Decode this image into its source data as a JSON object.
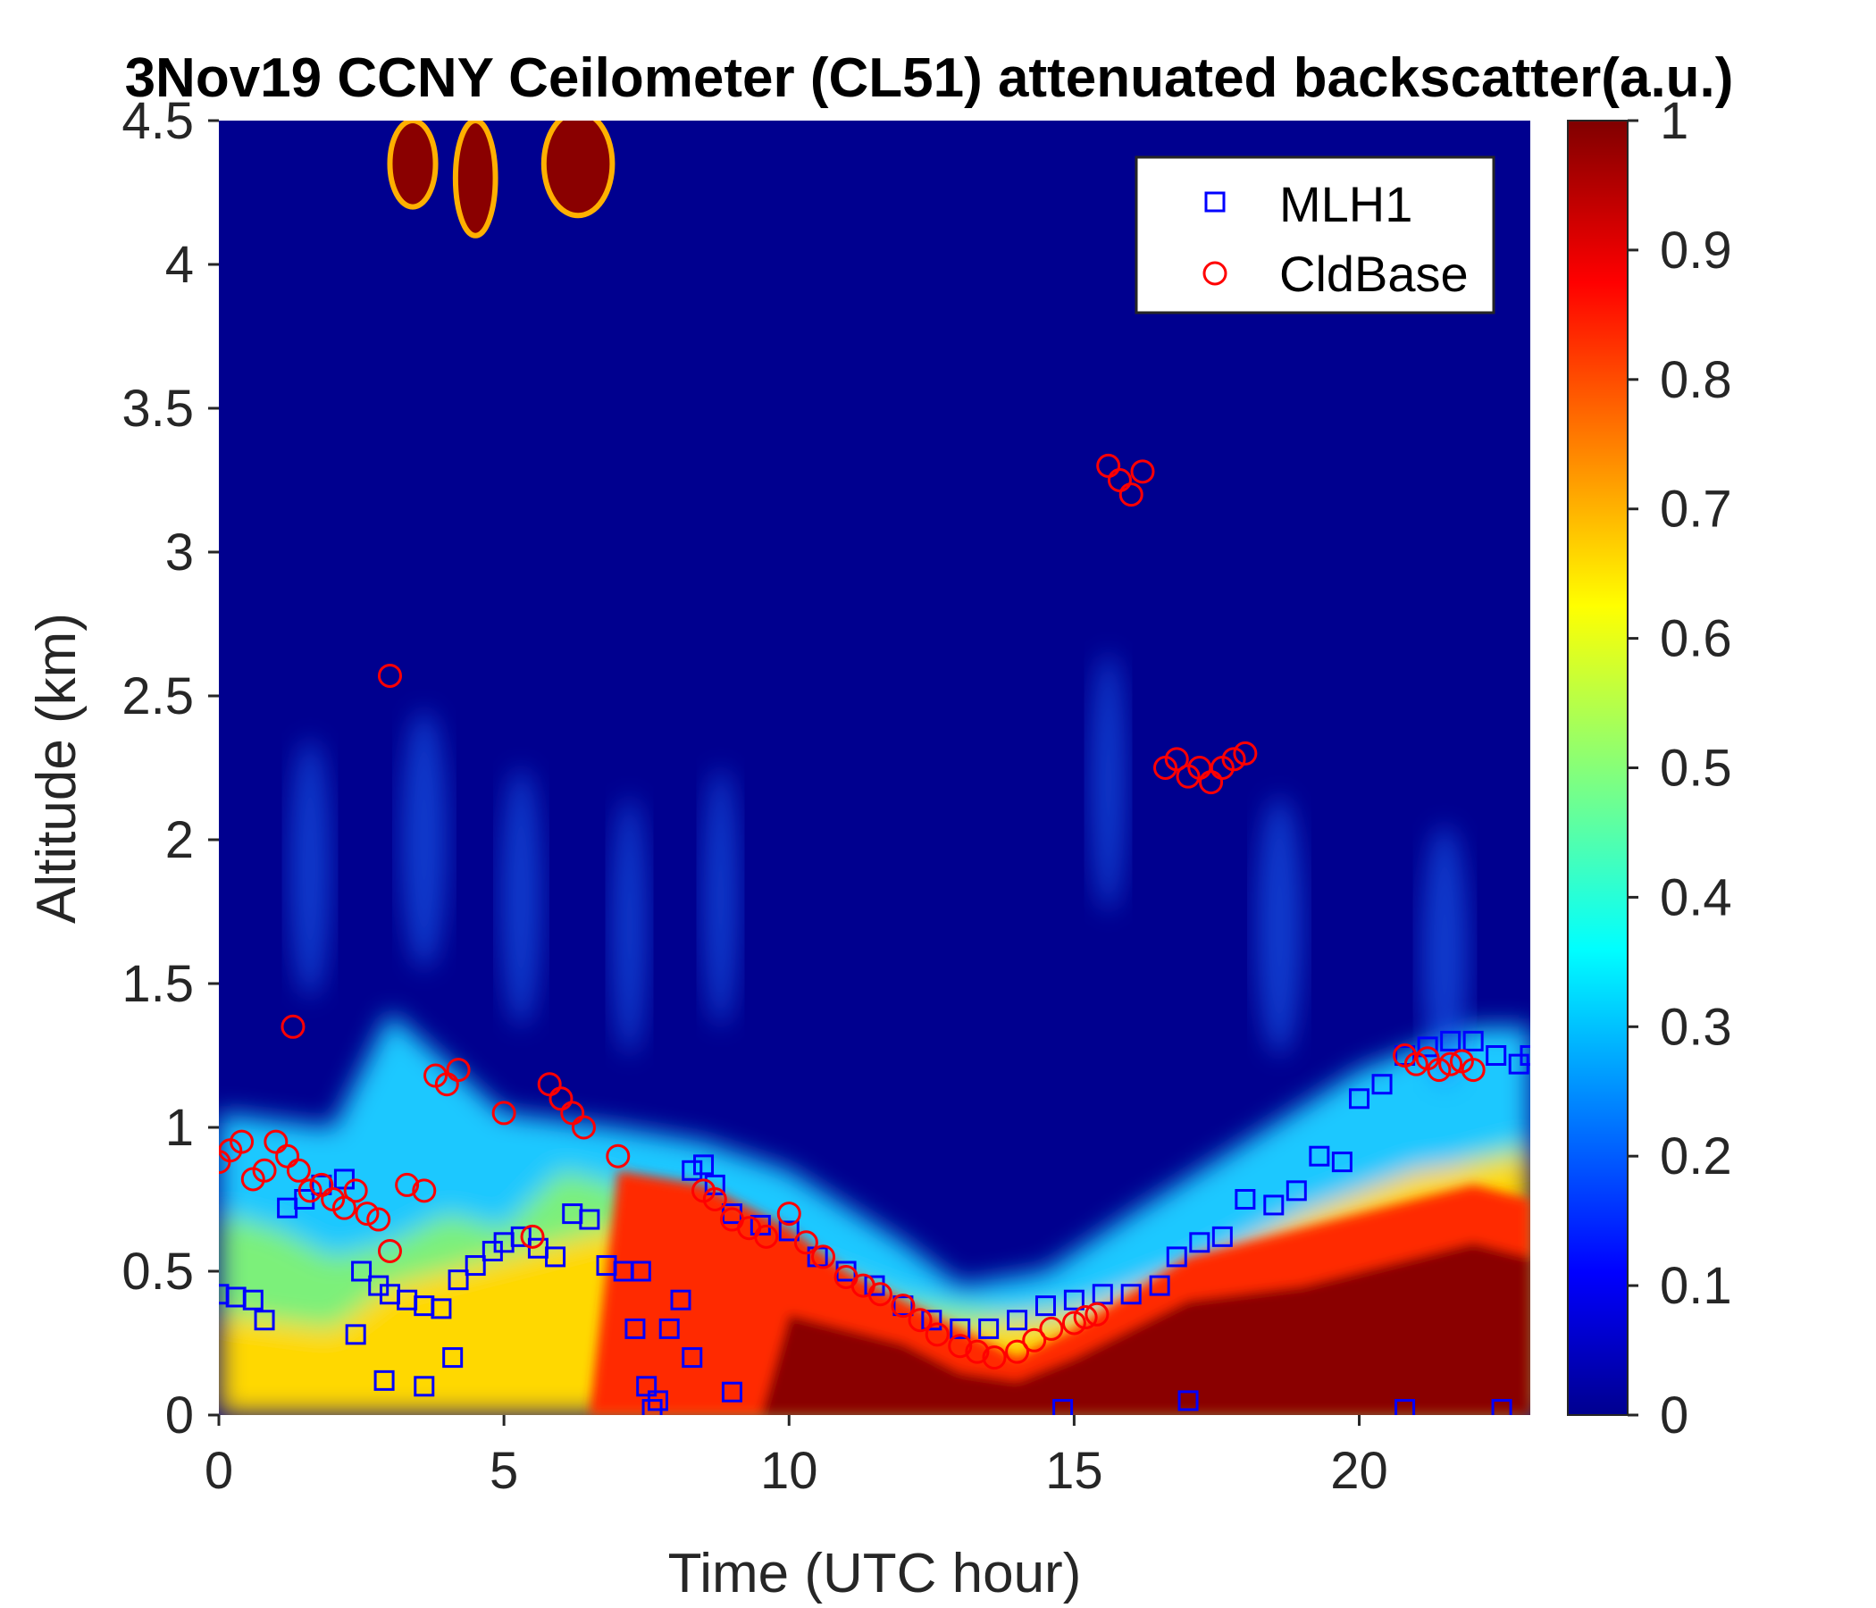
{
  "chart_data": {
    "type": "heatmap",
    "title": "3Nov19 CCNY Ceilometer (CL51) attenuated backscatter(a.u.)",
    "xlabel": "Time (UTC hour)",
    "ylabel": "Altitude (km)",
    "xlim": [
      0,
      23
    ],
    "ylim": [
      0,
      4.5
    ],
    "xticks": [
      0,
      5,
      10,
      15,
      20
    ],
    "yticks": [
      0,
      0.5,
      1,
      1.5,
      2,
      2.5,
      3,
      3.5,
      4,
      4.5
    ],
    "colorbar": {
      "range": [
        0,
        1
      ],
      "ticks": [
        0,
        0.1,
        0.2,
        0.3,
        0.4,
        0.5,
        0.6,
        0.7,
        0.8,
        0.9,
        1
      ],
      "colormap": "jet"
    },
    "legend": {
      "position": "top-right",
      "entries": [
        {
          "name": "MLH1",
          "marker": "square",
          "color": "#0000ff"
        },
        {
          "name": "CldBase",
          "marker": "circle",
          "color": "#ff0000"
        }
      ]
    },
    "series": [
      {
        "name": "MLH1",
        "x": [
          0.0,
          0.3,
          0.6,
          0.8,
          1.2,
          1.5,
          1.8,
          2.2,
          2.5,
          2.8,
          3.0,
          3.3,
          3.6,
          3.9,
          4.2,
          4.5,
          4.8,
          5.0,
          5.3,
          5.6,
          5.9,
          6.2,
          6.5,
          6.8,
          7.1,
          7.3,
          7.5,
          7.7,
          7.9,
          8.1,
          8.3,
          8.5,
          8.7,
          9.0,
          9.5,
          10.0,
          10.5,
          11.0,
          11.5,
          12.0,
          12.5,
          13.0,
          13.5,
          14.0,
          14.5,
          15.0,
          15.5,
          16.0,
          16.5,
          16.8,
          17.2,
          17.6,
          18.0,
          18.5,
          18.9,
          19.3,
          19.7,
          20.0,
          20.4,
          20.8,
          21.2,
          21.6,
          22.0,
          22.4,
          22.8,
          23.0,
          2.4,
          2.9,
          3.6,
          4.1,
          7.4,
          7.6,
          8.3,
          9.0,
          14.8,
          17.0,
          20.8,
          22.5
        ],
        "y": [
          0.42,
          0.41,
          0.4,
          0.33,
          0.72,
          0.75,
          0.8,
          0.82,
          0.5,
          0.45,
          0.42,
          0.4,
          0.38,
          0.37,
          0.47,
          0.52,
          0.57,
          0.6,
          0.62,
          0.58,
          0.55,
          0.7,
          0.68,
          0.52,
          0.5,
          0.3,
          0.1,
          0.05,
          0.3,
          0.4,
          0.85,
          0.87,
          0.8,
          0.7,
          0.66,
          0.64,
          0.55,
          0.5,
          0.45,
          0.38,
          0.33,
          0.3,
          0.3,
          0.33,
          0.38,
          0.4,
          0.42,
          0.42,
          0.45,
          0.55,
          0.6,
          0.62,
          0.75,
          0.73,
          0.78,
          0.9,
          0.88,
          1.1,
          1.15,
          1.25,
          1.28,
          1.3,
          1.3,
          1.25,
          1.22,
          1.25,
          0.28,
          0.12,
          0.1,
          0.2,
          0.5,
          0.02,
          0.2,
          0.08,
          0.02,
          0.05,
          0.02,
          0.02
        ]
      },
      {
        "name": "CldBase",
        "x": [
          0.0,
          0.2,
          0.4,
          0.6,
          0.8,
          1.0,
          1.2,
          1.4,
          1.6,
          1.8,
          2.0,
          2.2,
          2.4,
          2.6,
          2.8,
          3.0,
          3.3,
          3.6,
          3.8,
          4.0,
          4.2,
          5.0,
          5.5,
          5.8,
          6.0,
          6.2,
          6.4,
          7.0,
          8.5,
          8.7,
          9.0,
          9.3,
          9.6,
          10.0,
          10.3,
          10.6,
          11.0,
          11.3,
          11.6,
          12.0,
          12.3,
          12.6,
          13.0,
          13.3,
          13.6,
          14.0,
          14.3,
          14.6,
          15.0,
          15.2,
          15.4,
          15.6,
          15.8,
          16.0,
          16.2,
          16.6,
          16.8,
          17.0,
          17.2,
          17.4,
          17.6,
          17.8,
          18.0,
          20.8,
          21.0,
          21.2,
          21.4,
          21.6,
          21.8,
          22.0,
          3.0,
          1.3
        ],
        "y": [
          0.88,
          0.92,
          0.95,
          0.82,
          0.85,
          0.95,
          0.9,
          0.85,
          0.78,
          0.8,
          0.75,
          0.72,
          0.78,
          0.7,
          0.68,
          0.57,
          0.8,
          0.78,
          1.18,
          1.15,
          1.2,
          1.05,
          0.62,
          1.15,
          1.1,
          1.05,
          1.0,
          0.9,
          0.78,
          0.75,
          0.68,
          0.65,
          0.62,
          0.7,
          0.6,
          0.55,
          0.48,
          0.45,
          0.42,
          0.38,
          0.33,
          0.28,
          0.24,
          0.22,
          0.2,
          0.22,
          0.26,
          0.3,
          0.32,
          0.34,
          0.35,
          3.3,
          3.25,
          3.2,
          3.28,
          2.25,
          2.28,
          2.22,
          2.25,
          2.2,
          2.25,
          2.28,
          2.3,
          1.25,
          1.22,
          1.24,
          1.2,
          1.22,
          1.23,
          1.2,
          2.57,
          1.35
        ]
      }
    ],
    "annotations": []
  }
}
